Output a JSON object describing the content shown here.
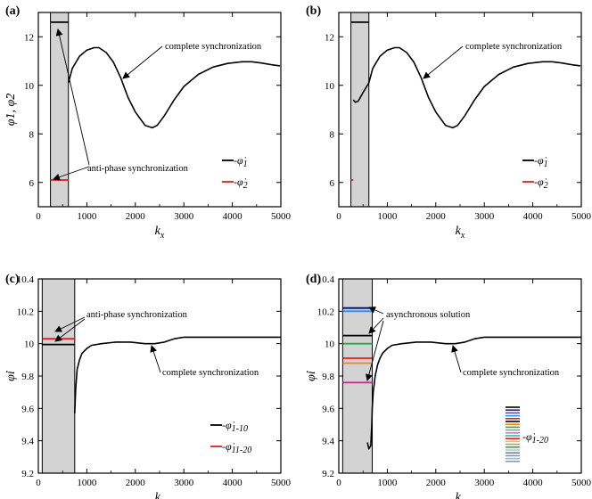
{
  "chart_data": [
    {
      "type": "line",
      "panel_label": "(a)",
      "xlabel": "k",
      "xlabel_sub": "x",
      "ylabel": "φ̇1, φ̇2",
      "xlim": [
        0,
        5000
      ],
      "ylim": [
        5,
        13
      ],
      "xticks": [
        0,
        1000,
        2000,
        3000,
        4000,
        5000
      ],
      "yticks": [
        6,
        8,
        10,
        12
      ],
      "shaded_region": [
        250,
        620
      ],
      "series": [
        {
          "name": "-φ̇1",
          "color": "#000000",
          "x": [
            620,
            700,
            850,
            1000,
            1150,
            1250,
            1400,
            1550,
            1700,
            1850,
            2000,
            2200,
            2350,
            2450,
            2600,
            2800,
            3000,
            3300,
            3600,
            3900,
            4200,
            4400,
            4600,
            4800,
            4980
          ],
          "y": [
            10.1,
            10.7,
            11.2,
            11.45,
            11.55,
            11.55,
            11.35,
            10.95,
            10.3,
            9.5,
            8.9,
            8.35,
            8.25,
            8.35,
            8.75,
            9.4,
            9.95,
            10.45,
            10.75,
            10.9,
            10.97,
            10.97,
            10.92,
            10.85,
            10.8
          ]
        },
        {
          "name": "-φ̇1 (anti-phase)",
          "color": "#000000",
          "x": [
            250,
            620
          ],
          "y": [
            12.6,
            12.6
          ]
        },
        {
          "name": "-φ̇2",
          "color": "#e02020",
          "x": [
            250,
            620
          ],
          "y": [
            6.1,
            6.1
          ]
        }
      ],
      "annotations": [
        "complete synchronization",
        "anti-phase synchronization"
      ],
      "legend": [
        {
          "label": "-φ̇",
          "sub": "1",
          "color": "#000000"
        },
        {
          "label": "-φ̇",
          "sub": "2",
          "color": "#e02020"
        }
      ]
    },
    {
      "type": "line",
      "panel_label": "(b)",
      "xlabel": "k",
      "xlabel_sub": "x",
      "xlim": [
        0,
        5000
      ],
      "ylim": [
        5,
        13
      ],
      "xticks": [
        0,
        1000,
        2000,
        3000,
        4000,
        5000
      ],
      "yticks": [
        6,
        8,
        10,
        12
      ],
      "shaded_region": [
        250,
        620
      ],
      "series": [
        {
          "name": "-φ̇1",
          "color": "#000000",
          "x": [
            300,
            340,
            400,
            500,
            620,
            700,
            850,
            1000,
            1150,
            1250,
            1400,
            1550,
            1700,
            1850,
            2000,
            2200,
            2350,
            2450,
            2600,
            2800,
            3000,
            3300,
            3600,
            3900,
            4200,
            4400,
            4600,
            4800,
            4980
          ],
          "y": [
            9.4,
            9.3,
            9.35,
            9.7,
            10.1,
            10.7,
            11.2,
            11.45,
            11.55,
            11.55,
            11.35,
            10.95,
            10.3,
            9.5,
            8.9,
            8.35,
            8.25,
            8.35,
            8.75,
            9.4,
            9.95,
            10.45,
            10.75,
            10.9,
            10.97,
            10.97,
            10.92,
            10.85,
            10.8
          ]
        },
        {
          "name": "-φ̇1 (anti-phase)",
          "color": "#000000",
          "x": [
            250,
            620
          ],
          "y": [
            12.6,
            12.6
          ]
        },
        {
          "name": "-φ̇2",
          "color": "#e02020",
          "x": [
            250,
            300
          ],
          "y": [
            6.1,
            6.1
          ]
        }
      ],
      "annotations": [
        "complete synchronization"
      ],
      "legend": [
        {
          "label": "-φ̇",
          "sub": "1",
          "color": "#000000"
        },
        {
          "label": "-φ̇",
          "sub": "2",
          "color": "#e02020"
        }
      ]
    },
    {
      "type": "line",
      "panel_label": "(c)",
      "xlabel": "k",
      "xlabel_sub": "x",
      "ylabel": "φ̇i",
      "xlim": [
        0,
        5000
      ],
      "ylim": [
        9.2,
        10.4
      ],
      "xticks": [
        0,
        1000,
        2000,
        3000,
        4000,
        5000
      ],
      "yticks": [
        9.2,
        9.4,
        9.6,
        9.8,
        10,
        10.2,
        10.4
      ],
      "shaded_region": [
        80,
        750
      ],
      "series": [
        {
          "name": "-φ̇1-10",
          "color": "#000000",
          "x": [
            750,
            770,
            800,
            850,
            900,
            1000,
            1100,
            1300,
            1600,
            1900,
            2200,
            2400,
            2600,
            2800,
            3000,
            3200,
            3600,
            4000,
            4500,
            5000
          ],
          "y": [
            9.57,
            9.72,
            9.84,
            9.9,
            9.94,
            9.97,
            9.99,
            10.0,
            10.01,
            10.01,
            10.0,
            10.0,
            10.01,
            10.03,
            10.04,
            10.04,
            10.04,
            10.04,
            10.04,
            10.04
          ]
        },
        {
          "name": "-φ̇1-10 (anti-phase)",
          "color": "#000000",
          "x": [
            80,
            750
          ],
          "y": [
            9.995,
            9.995
          ]
        },
        {
          "name": "-φ̇11-20",
          "color": "#e02020",
          "x": [
            80,
            750
          ],
          "y": [
            10.03,
            10.03
          ]
        }
      ],
      "annotations": [
        "anti-phase synchronization",
        "complete synchronization"
      ],
      "legend": [
        {
          "label": "-φ̇",
          "sub": "1-10",
          "color": "#000000"
        },
        {
          "label": "-φ̇",
          "sub": "11-20",
          "color": "#e02020"
        }
      ]
    },
    {
      "type": "line",
      "panel_label": "(d)",
      "xlabel": "k",
      "xlabel_sub": "x",
      "ylabel": "φ̇i",
      "xlim": [
        0,
        5000
      ],
      "ylim": [
        9.2,
        10.4
      ],
      "xticks": [
        0,
        1000,
        2000,
        3000,
        4000,
        5000
      ],
      "yticks": [
        9.2,
        9.4,
        9.6,
        9.8,
        10,
        10.2,
        10.4
      ],
      "shaded_region": [
        80,
        690
      ],
      "series": [
        {
          "name": "-φ̇1-20",
          "color": "#000000",
          "x": [
            590,
            620,
            660,
            680,
            690,
            710,
            750,
            800,
            850,
            900,
            1000,
            1100,
            1300,
            1600,
            1900,
            2200,
            2400,
            2600,
            2800,
            3000,
            3200,
            3600,
            4000,
            4500,
            5000
          ],
          "y": [
            9.39,
            9.35,
            9.37,
            9.5,
            9.6,
            9.7,
            9.8,
            9.87,
            9.91,
            9.94,
            9.97,
            9.99,
            10.0,
            10.01,
            10.01,
            10.0,
            10.0,
            10.01,
            10.03,
            10.04,
            10.04,
            10.04,
            10.04,
            10.04,
            10.04
          ]
        },
        {
          "name": "async 1",
          "color": "#000080",
          "x": [
            80,
            690
          ],
          "y": [
            10.22,
            10.22
          ]
        },
        {
          "name": "async 2",
          "color": "#1e90ff",
          "x": [
            80,
            690
          ],
          "y": [
            10.2,
            10.2
          ]
        },
        {
          "name": "async 3",
          "color": "#000000",
          "x": [
            80,
            690
          ],
          "y": [
            10.05,
            10.05
          ]
        },
        {
          "name": "async 4",
          "color": "#20b040",
          "x": [
            80,
            690
          ],
          "y": [
            10.0,
            10.0
          ]
        },
        {
          "name": "async 5",
          "color": "#e02020",
          "x": [
            80,
            690
          ],
          "y": [
            9.91,
            9.91
          ]
        },
        {
          "name": "async 6",
          "color": "#f08020",
          "x": [
            80,
            690
          ],
          "y": [
            9.88,
            9.88
          ]
        },
        {
          "name": "async 7",
          "color": "#e020a0",
          "x": [
            80,
            690
          ],
          "y": [
            9.76,
            9.76
          ]
        }
      ],
      "annotations": [
        "asynchronous solution",
        "complete synchronization"
      ],
      "legend": [
        {
          "label": "-φ̇",
          "sub": "1-20",
          "color": "#000000"
        }
      ],
      "legend_colors": [
        "#000000",
        "#2b2b7f",
        "#7a3b9e",
        "#1e90ff",
        "#e02020",
        "#000000",
        "#f08020",
        "#20b040",
        "#999999",
        "#c080c0",
        "#40b0b0",
        "#e02020",
        "#f0c040",
        "#a0a0a0",
        "#20b040",
        "#c0c0e0",
        "#808080",
        "#60a0d0",
        "#b0b0b0",
        "#5fb0c0"
      ]
    }
  ]
}
